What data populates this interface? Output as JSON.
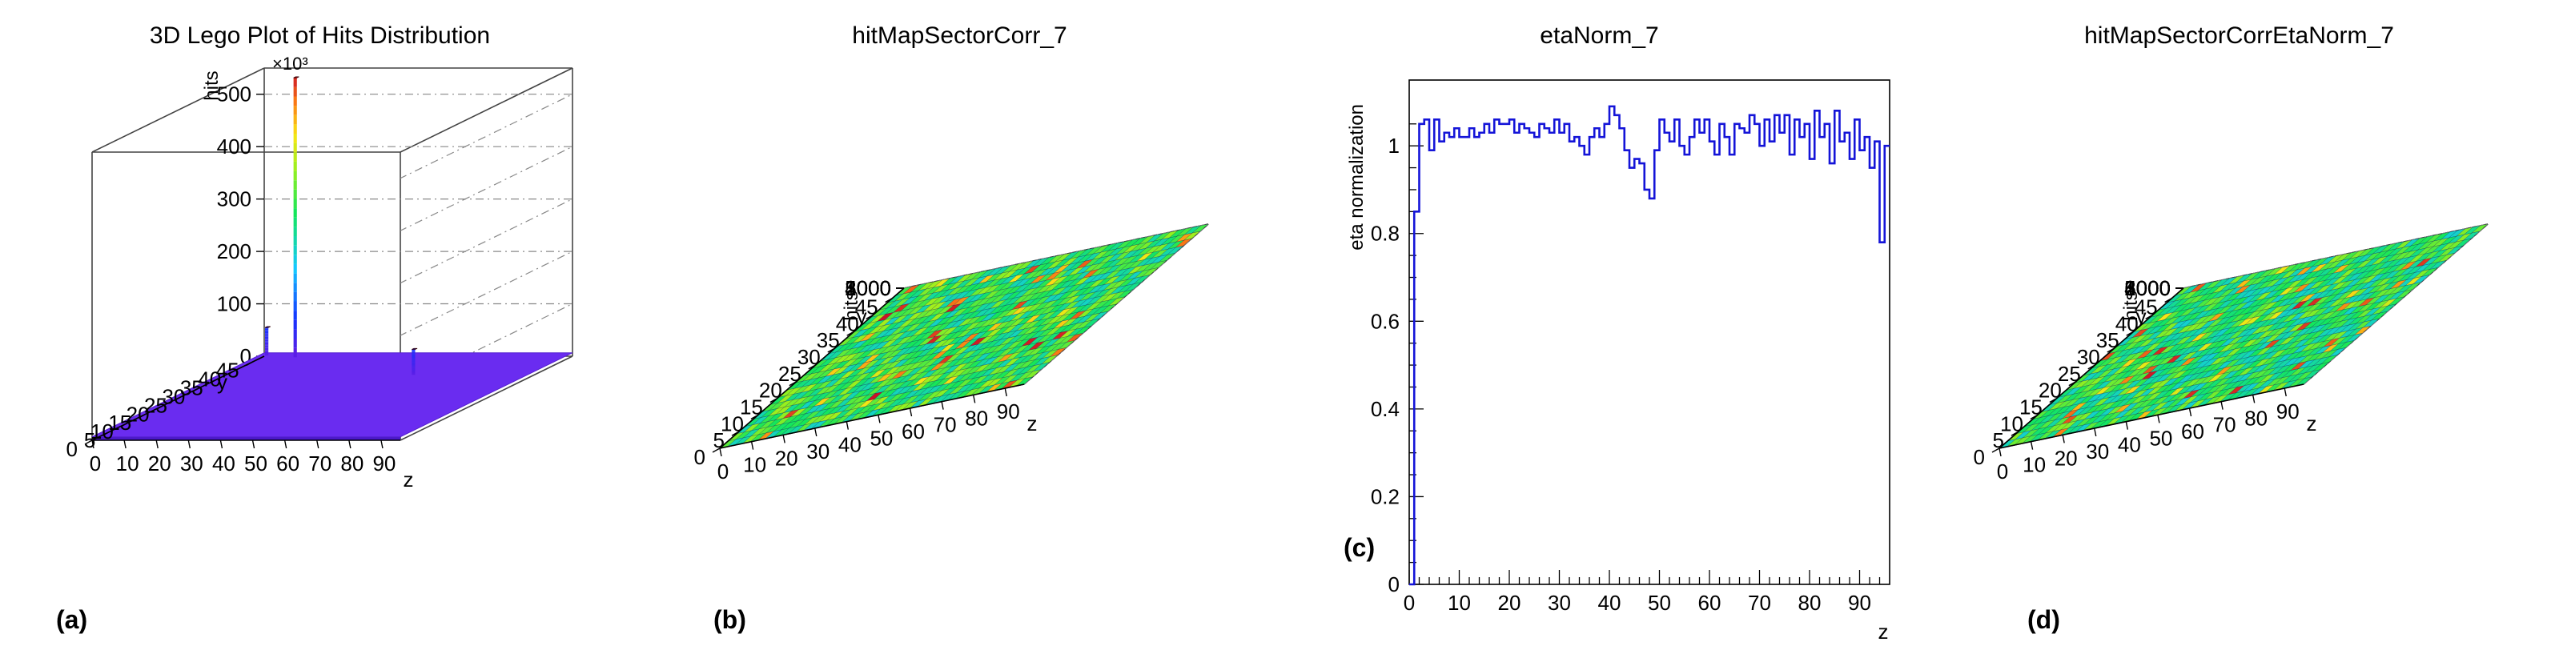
{
  "chart_data": [
    {
      "type": "lego3d",
      "panel_label": "(a)",
      "title": "3D Lego Plot of Hits Distribution",
      "zlabel": "hits",
      "xlabel": "z",
      "ylabel": "y",
      "exponent_label": "×10³",
      "z_ticks": [
        "0",
        "100",
        "200",
        "300",
        "400",
        "500"
      ],
      "zlim": [
        0,
        550
      ],
      "x_ticks": [
        "0",
        "10",
        "20",
        "30",
        "40",
        "50",
        "60",
        "70",
        "80",
        "90"
      ],
      "xlim": [
        0,
        96
      ],
      "y_ticks": [
        "0",
        "5",
        "10",
        "15",
        "20",
        "25",
        "30",
        "35",
        "40",
        "45"
      ],
      "ylim": [
        0,
        48
      ],
      "spikes": [
        {
          "z": 2,
          "y": 47,
          "value": 60
        },
        {
          "z": 12,
          "y": 46,
          "value": 540
        },
        {
          "z": 60,
          "y": 36,
          "value": 55
        }
      ]
    },
    {
      "type": "lego3d",
      "panel_label": "(b)",
      "title": "hitMapSectorCorr_7",
      "zlabel": "hits",
      "xlabel": "z",
      "ylabel": "y",
      "z_ticks": [
        "0",
        "1000",
        "2000",
        "3000",
        "4000",
        "5000"
      ],
      "zlim": [
        0,
        5800
      ],
      "x_ticks": [
        "0",
        "10",
        "20",
        "30",
        "40",
        "50",
        "60",
        "70",
        "80",
        "90"
      ],
      "xlim": [
        0,
        96
      ],
      "y_ticks": [
        "0",
        "5",
        "10",
        "15",
        "20",
        "25",
        "30",
        "35",
        "40",
        "45"
      ],
      "ylim": [
        0,
        48
      ],
      "typical_range": [
        2000,
        4000
      ],
      "peak": 5400
    },
    {
      "type": "step",
      "panel_label": "(c)",
      "title": "etaNorm_7",
      "xlabel": "z",
      "ylabel": "eta normalization",
      "x_ticks": [
        "0",
        "10",
        "20",
        "30",
        "40",
        "50",
        "60",
        "70",
        "80",
        "90"
      ],
      "xlim": [
        0,
        96
      ],
      "y_ticks": [
        "0",
        "0.2",
        "0.4",
        "0.6",
        "0.8",
        "1"
      ],
      "ylim": [
        0,
        1.15
      ],
      "values": [
        0,
        0.85,
        1.05,
        1.06,
        0.99,
        1.06,
        1.01,
        1.03,
        1.02,
        1.04,
        1.02,
        1.02,
        1.04,
        1.02,
        1.03,
        1.05,
        1.03,
        1.06,
        1.05,
        1.05,
        1.06,
        1.03,
        1.05,
        1.04,
        1.03,
        1.02,
        1.05,
        1.04,
        1.03,
        1.06,
        1.03,
        1.05,
        1.01,
        1.02,
        1.0,
        0.98,
        1.02,
        1.04,
        1.02,
        1.05,
        1.09,
        1.07,
        1.04,
        0.99,
        0.95,
        0.97,
        0.96,
        0.9,
        0.88,
        0.99,
        1.06,
        1.03,
        1.01,
        1.06,
        1.0,
        0.98,
        1.02,
        1.06,
        1.03,
        1.06,
        1.01,
        0.98,
        1.05,
        1.02,
        0.98,
        1.05,
        1.04,
        1.03,
        1.07,
        1.05,
        1.0,
        1.06,
        1.01,
        1.07,
        1.03,
        1.07,
        0.98,
        1.06,
        1.02,
        1.05,
        0.97,
        1.08,
        1.02,
        1.05,
        0.96,
        1.08,
        1.01,
        1.03,
        0.97,
        1.06,
        0.99,
        1.02,
        0.95,
        1.01,
        0.78,
        1.0
      ]
    },
    {
      "type": "lego3d",
      "panel_label": "(d)",
      "title": "hitMapSectorCorrEtaNorm_7",
      "zlabel": "hits",
      "xlabel": "z",
      "ylabel": "y",
      "z_ticks": [
        "0",
        "1000",
        "2000",
        "3000",
        "4000",
        "5000",
        "6000"
      ],
      "zlim": [
        0,
        6300
      ],
      "x_ticks": [
        "0",
        "10",
        "20",
        "30",
        "40",
        "50",
        "60",
        "70",
        "80",
        "90"
      ],
      "xlim": [
        0,
        96
      ],
      "y_ticks": [
        "0",
        "5",
        "10",
        "15",
        "20",
        "25",
        "30",
        "35",
        "40",
        "45"
      ],
      "ylim": [
        0,
        48
      ],
      "typical_range": [
        2000,
        4000
      ],
      "peak": 5600
    }
  ]
}
